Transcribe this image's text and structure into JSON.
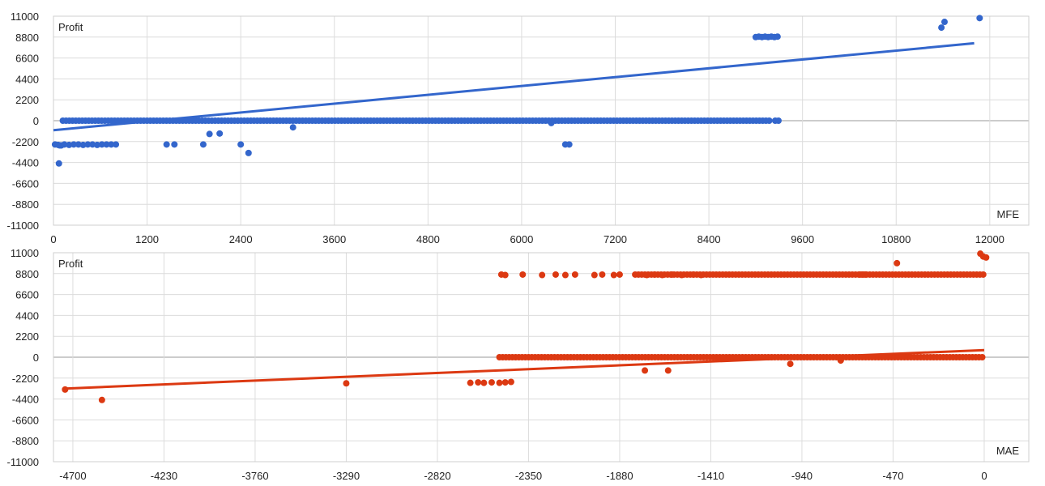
{
  "chart_data": [
    {
      "type": "scatter",
      "ylabel": "Profit",
      "xlabel": "MFE",
      "xlim": [
        0,
        12500
      ],
      "ylim": [
        -11000,
        11000
      ],
      "x_ticks": [
        0,
        1200,
        2400,
        3600,
        4800,
        6000,
        7200,
        8400,
        9600,
        10800,
        12000
      ],
      "y_ticks": [
        11000,
        8800,
        6600,
        4400,
        2200,
        0,
        -2200,
        -4400,
        -6600,
        -8800,
        -11000
      ],
      "grid": true,
      "color": "#3366cc",
      "trendline": [
        [
          0,
          -1000
        ],
        [
          11800,
          8150
        ]
      ],
      "series": [
        {
          "points": [
            [
              20,
              -2500
            ],
            [
              60,
              -2550
            ],
            [
              80,
              -2600
            ],
            [
              70,
              -4500
            ],
            [
              100,
              -2600
            ],
            [
              140,
              -2500
            ],
            [
              200,
              -2550
            ],
            [
              260,
              -2500
            ],
            [
              320,
              -2500
            ],
            [
              380,
              -2550
            ],
            [
              440,
              -2500
            ],
            [
              500,
              -2500
            ],
            [
              560,
              -2550
            ],
            [
              620,
              -2500
            ],
            [
              680,
              -2500
            ],
            [
              740,
              -2500
            ],
            [
              800,
              -2500
            ],
            [
              1450,
              -2500
            ],
            [
              1550,
              -2500
            ],
            [
              1920,
              -2500
            ],
            [
              2000,
              -1400
            ],
            [
              2130,
              -1350
            ],
            [
              2400,
              -2500
            ],
            [
              2500,
              -3400
            ],
            [
              3070,
              -700
            ],
            [
              6560,
              -2500
            ],
            [
              6610,
              -2500
            ],
            [
              9000,
              8800
            ],
            [
              9040,
              8850
            ],
            [
              9080,
              8800
            ],
            [
              9120,
              8850
            ],
            [
              9160,
              8800
            ],
            [
              9200,
              8850
            ],
            [
              9240,
              8800
            ],
            [
              9280,
              8850
            ],
            [
              11380,
              9800
            ],
            [
              11420,
              10400
            ],
            [
              11870,
              10800
            ],
            [
              6380,
              -250
            ]
          ],
          "segments": [
            [
              120,
              9200,
              0
            ],
            [
              9250,
              9300,
              0
            ]
          ]
        }
      ]
    },
    {
      "type": "scatter",
      "ylabel": "Profit",
      "xlabel": "MAE",
      "xlim": [
        -4800,
        230
      ],
      "ylim": [
        -11000,
        11000
      ],
      "x_ticks": [
        -4700,
        -4230,
        -3760,
        -3290,
        -2820,
        -2350,
        -1880,
        -1410,
        -940,
        -470,
        0
      ],
      "y_ticks": [
        11000,
        8800,
        6600,
        4400,
        2200,
        0,
        -2200,
        -4400,
        -6600,
        -8800,
        -11000
      ],
      "grid": true,
      "color": "#dc3912",
      "trendline": [
        [
          -4740,
          -3300
        ],
        [
          0,
          750
        ]
      ],
      "series": [
        {
          "points": [
            [
              -4740,
              -3400
            ],
            [
              -4550,
              -4500
            ],
            [
              -3290,
              -2750
            ],
            [
              -2650,
              -2700
            ],
            [
              -2610,
              -2650
            ],
            [
              -2580,
              -2700
            ],
            [
              -2540,
              -2650
            ],
            [
              -2500,
              -2700
            ],
            [
              -2470,
              -2650
            ],
            [
              -2440,
              -2600
            ],
            [
              -1750,
              -1400
            ],
            [
              -1630,
              -1400
            ],
            [
              -1000,
              -700
            ],
            [
              -740,
              -350
            ],
            [
              -2490,
              8700
            ],
            [
              -2470,
              8650
            ],
            [
              -2380,
              8700
            ],
            [
              -2280,
              8650
            ],
            [
              -2210,
              8700
            ],
            [
              -2160,
              8650
            ],
            [
              -2110,
              8700
            ],
            [
              -2010,
              8650
            ],
            [
              -1970,
              8700
            ],
            [
              -1910,
              8650
            ],
            [
              -1880,
              8700
            ],
            [
              -1740,
              8650
            ],
            [
              -1700,
              8700
            ],
            [
              -1660,
              8650
            ],
            [
              -1610,
              8700
            ],
            [
              -1560,
              8650
            ],
            [
              -1500,
              8700
            ],
            [
              -1460,
              8650
            ],
            [
              -450,
              9900
            ],
            [
              -20,
              10900
            ],
            [
              -5,
              10600
            ],
            [
              10,
              10500
            ]
          ],
          "segments": [
            [
              -2500,
              0,
              0
            ],
            [
              -1800,
              -600,
              8700
            ],
            [
              -640,
              0,
              8700
            ]
          ]
        }
      ]
    }
  ]
}
